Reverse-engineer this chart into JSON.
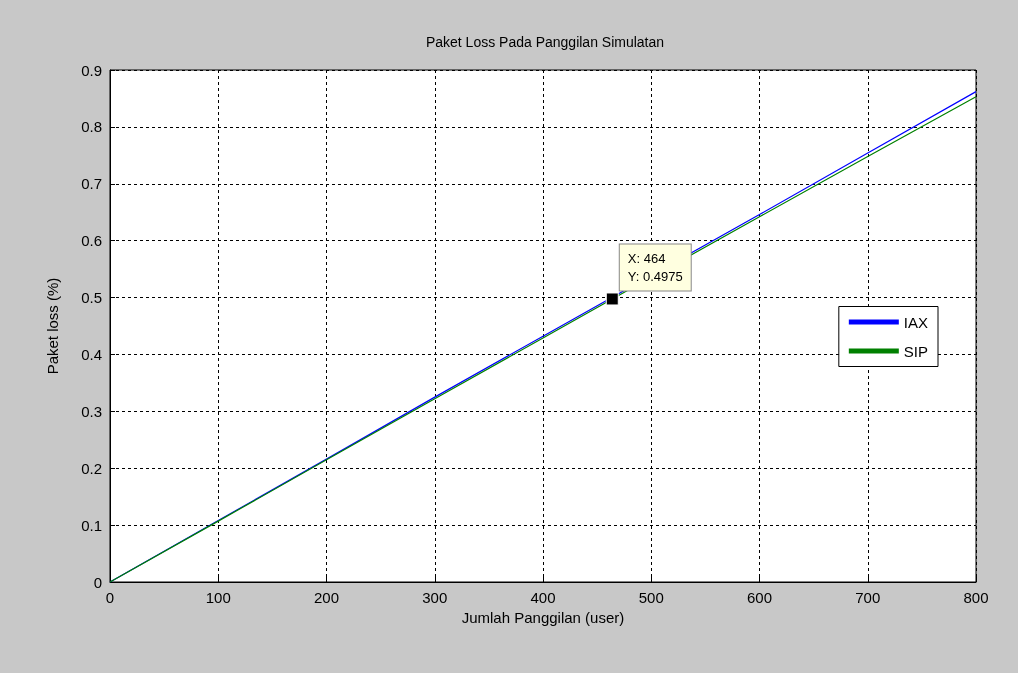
{
  "chart_data": {
    "type": "line",
    "title": "Paket Loss Pada Panggilan Simulatan",
    "xlabel": "Jumlah Panggilan (user)",
    "ylabel": "Paket loss (%)",
    "series": [
      {
        "name": "IAX",
        "color": "#0000ff",
        "x": [
          0,
          100,
          200,
          300,
          400,
          600,
          700,
          800
        ],
        "values": [
          0,
          0.108,
          0.216,
          0.325,
          0.432,
          0.646,
          0.754,
          0.862
        ]
      },
      {
        "name": "SIP",
        "color": "#008000",
        "x": [
          0,
          100,
          200,
          300,
          400,
          464,
          600,
          700,
          800
        ],
        "values": [
          0,
          0.107,
          0.215,
          0.322,
          0.429,
          0.4975,
          0.642,
          0.748,
          0.853
        ]
      }
    ],
    "xlim": [
      0,
      800
    ],
    "xticks": [
      0,
      100,
      200,
      300,
      400,
      500,
      600,
      700,
      800
    ],
    "ylim": [
      0,
      0.9
    ],
    "yticks": [
      0,
      0.1,
      0.2,
      0.3,
      0.4,
      0.5,
      0.6,
      0.7,
      0.8,
      0.9
    ],
    "annotations": [
      {
        "text": "X: 464\nY: 0.4975",
        "x": 464,
        "y": 0.4975
      }
    ],
    "grid": true,
    "legend": "right",
    "marker": "none",
    "line_style": "solid"
  }
}
